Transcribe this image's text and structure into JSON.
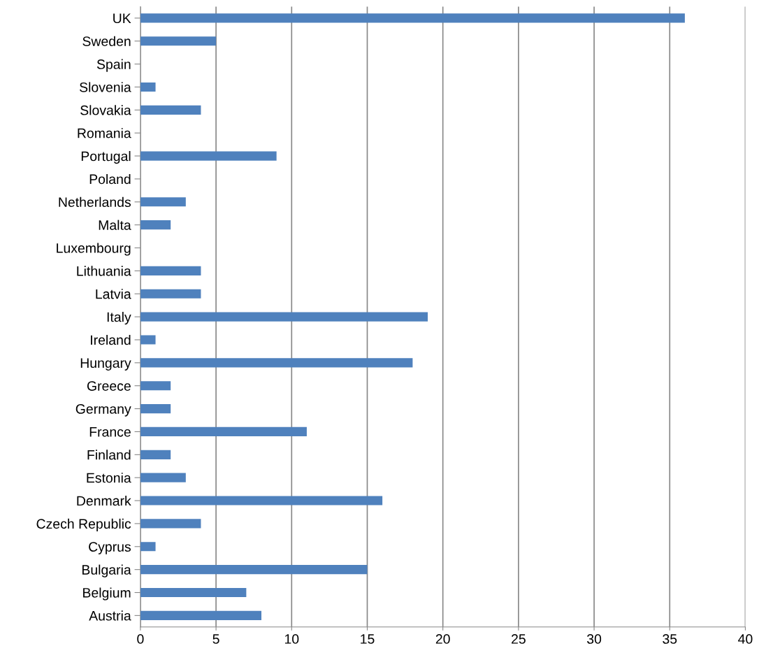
{
  "chart_data": {
    "type": "bar",
    "orientation": "horizontal",
    "categories": [
      "UK",
      "Sweden",
      "Spain",
      "Slovenia",
      "Slovakia",
      "Romania",
      "Portugal",
      "Poland",
      "Netherlands",
      "Malta",
      "Luxembourg",
      "Lithuania",
      "Latvia",
      "Italy",
      "Ireland",
      "Hungary",
      "Greece",
      "Germany",
      "France",
      "Finland",
      "Estonia",
      "Denmark",
      "Czech Republic",
      "Cyprus",
      "Bulgaria",
      "Belgium",
      "Austria"
    ],
    "values": [
      36,
      5,
      0,
      1,
      4,
      0,
      9,
      0,
      3,
      2,
      0,
      4,
      4,
      19,
      1,
      18,
      2,
      2,
      11,
      2,
      3,
      16,
      4,
      1,
      15,
      7,
      8
    ],
    "color": "#4f81bd",
    "xlim": [
      0,
      40
    ],
    "xticks": [
      0,
      5,
      10,
      15,
      20,
      25,
      30,
      35,
      40
    ],
    "grid": "x"
  }
}
